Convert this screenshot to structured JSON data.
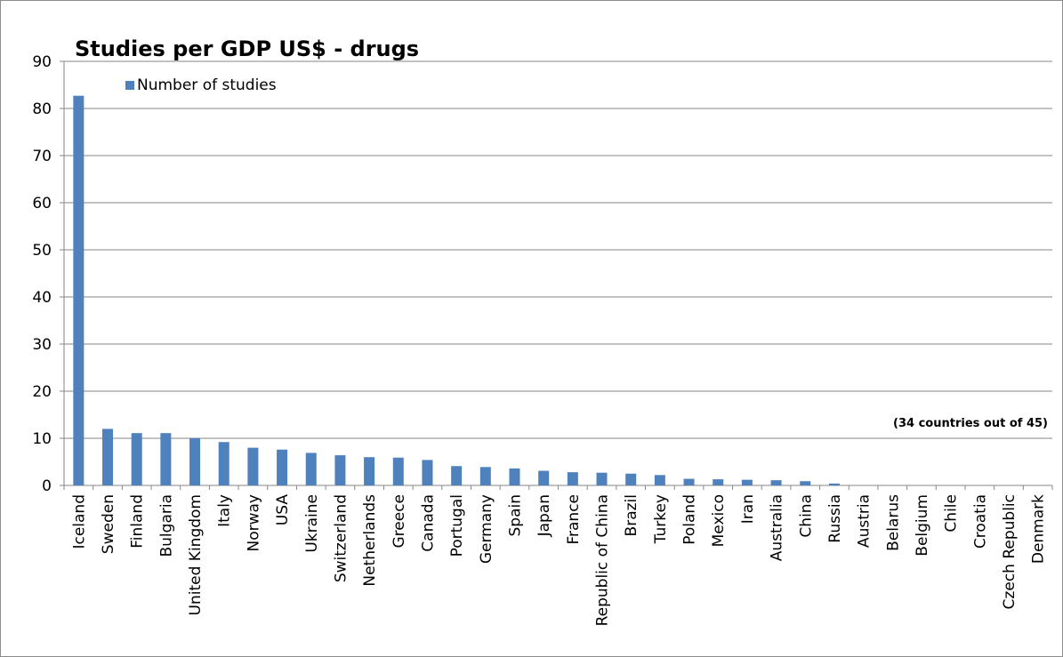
{
  "chart_data": {
    "type": "bar",
    "title": "Studies per GDP US$ - drugs",
    "xlabel": "",
    "ylabel": "",
    "ylim": [
      0,
      90
    ],
    "yticks": [
      0,
      10,
      20,
      30,
      40,
      50,
      60,
      70,
      80,
      90
    ],
    "grid": true,
    "legend_position": "top-left",
    "annotation": "(34 countries out of 45)",
    "categories": [
      "Iceland",
      "Sweden",
      "Finland",
      "Bulgaria",
      "United Kingdom",
      "Italy",
      "Norway",
      "USA",
      "Ukraine",
      "Switzerland",
      "Netherlands",
      "Greece",
      "Canada",
      "Portugal",
      "Germany",
      "Spain",
      "Japan",
      "France",
      "Republic of China",
      "Brazil",
      "Turkey",
      "Poland",
      "Mexico",
      "Iran",
      "Australia",
      "China",
      "Russia",
      "Austria",
      "Belarus",
      "Belgium",
      "Chile",
      "Croatia",
      "Czech Republic",
      "Denmark"
    ],
    "series": [
      {
        "name": "Number of studies",
        "color": "#4f81bd",
        "values": [
          82.7,
          12.0,
          11.1,
          11.1,
          10.0,
          9.2,
          8.0,
          7.6,
          6.9,
          6.4,
          6.0,
          5.9,
          5.4,
          4.1,
          3.9,
          3.6,
          3.1,
          2.8,
          2.7,
          2.5,
          2.2,
          1.4,
          1.3,
          1.2,
          1.1,
          0.9,
          0.4,
          0,
          0,
          0,
          0,
          0,
          0,
          0
        ]
      }
    ]
  }
}
